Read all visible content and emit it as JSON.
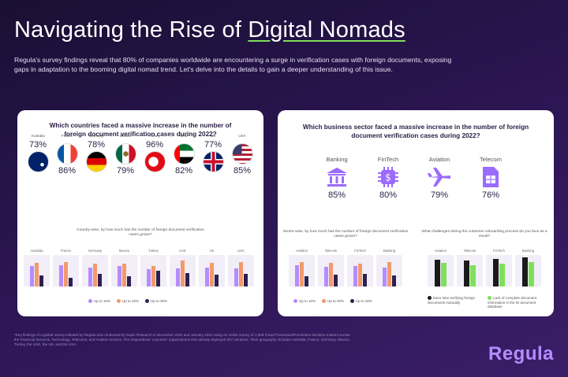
{
  "header": {
    "title_prefix": "Navigating the Rise of ",
    "title_highlight": "Digital Nomads",
    "intro": "Regula's survey findings reveal that 80% of companies worldwide are encountering a surge in verification cases with foreign documents, exposing gaps in adaptation to the booming digital nomad trend. Let's delve into the details to gain a deeper understanding of this issue."
  },
  "left_card": {
    "question": "Which countries faced a massive increase in the number of foreign document verification cases during 2022?",
    "countries": [
      {
        "name": "Australia",
        "pct": "73%",
        "flag": "australia"
      },
      {
        "name": "France",
        "pct": "86%",
        "flag": "france"
      },
      {
        "name": "Germany",
        "pct": "78%",
        "flag": "germany"
      },
      {
        "name": "Mexico",
        "pct": "79%",
        "flag": "mexico"
      },
      {
        "name": "Turkey",
        "pct": "96%",
        "flag": "turkey"
      },
      {
        "name": "UAE",
        "pct": "82%",
        "flag": "uae"
      },
      {
        "name": "UK",
        "pct": "77%",
        "flag": "uk"
      },
      {
        "name": "USA",
        "pct": "85%",
        "flag": "usa"
      }
    ],
    "sub_question": "Country-wise, by how much has the number of foreign document verification cases grown?",
    "chart_labels": [
      "Australia",
      "France",
      "Germany",
      "Mexico",
      "Turkey",
      "UAE",
      "UK",
      "USA"
    ],
    "legend": [
      "Up to 10%",
      "Up to 20%",
      "Up to 30%"
    ]
  },
  "right_card": {
    "question": "Which business sector faced a massive increase in the number of foreign document verification cases during 2022?",
    "sectors": [
      {
        "name": "Banking",
        "pct": "85%",
        "icon": "bank-icon"
      },
      {
        "name": "FinTech",
        "pct": "80%",
        "icon": "fintech-chip-icon"
      },
      {
        "name": "Aviation",
        "pct": "79%",
        "icon": "airplane-icon"
      },
      {
        "name": "Telecom",
        "pct": "76%",
        "icon": "sim-card-icon"
      }
    ],
    "sub_question_left": "Sector-wise, by how much has the number of foreign document verification cases grown?",
    "chart_labels_left": [
      "Aviation",
      "Telecom",
      "FinTech",
      "Banking"
    ],
    "legend_left": [
      "Up to 10%",
      "Up to 20%",
      "Up to 30%"
    ],
    "sub_question_right": "What challenges during the customer onboarding process do you face as a result?",
    "chart_labels_right": [
      "Aviation",
      "Telecom",
      "FinTech",
      "Banking"
    ],
    "legend_right": [
      "More time verifying foreign documents manually",
      "Lack of complete document information in the ID document database"
    ]
  },
  "footnote": "*Key findings of a global survey initiated by Regula and conducted by Sapio Research in December 2022 and January 2023 using an online survey of 1,009 Fraud Prevention/Prevention decision-makers across the Financial Services, Technology, Telecoms, and Aviation sectors. The respondents' countries' organizations that already deployed IDV solutions. Their geography includes Australia, France, Germany, Mexico, Turkey, the UAE, the UK, and the USA.",
  "brand": {
    "logo": "Regula"
  },
  "colors": {
    "accent_green": "#7ee05a",
    "purple": "#b58cff",
    "orange": "#f29a6b",
    "dark": "#2e2050"
  },
  "chart_data": [
    {
      "type": "bar",
      "title": "Country-wise, by how much has the number of foreign document verification cases grown?",
      "categories": [
        "Australia",
        "France",
        "Germany",
        "Mexico",
        "Turkey",
        "UAE",
        "UK",
        "USA"
      ],
      "series": [
        {
          "name": "Up to 10%",
          "values": [
            45,
            48,
            42,
            46,
            38,
            40,
            42,
            40
          ]
        },
        {
          "name": "Up to 20%",
          "values": [
            52,
            55,
            50,
            50,
            45,
            58,
            52,
            55
          ]
        },
        {
          "name": "Up to 30%",
          "values": [
            25,
            20,
            28,
            22,
            35,
            30,
            26,
            28
          ]
        }
      ],
      "ylim": [
        0,
        70
      ]
    },
    {
      "type": "bar",
      "title": "Sector-wise, by how much has the number of foreign document verification cases grown?",
      "categories": [
        "Aviation",
        "Telecom",
        "FinTech",
        "Banking"
      ],
      "series": [
        {
          "name": "Up to 10%",
          "values": [
            48,
            44,
            46,
            42
          ]
        },
        {
          "name": "Up to 20%",
          "values": [
            55,
            52,
            50,
            54
          ]
        },
        {
          "name": "Up to 30%",
          "values": [
            22,
            26,
            28,
            25
          ]
        }
      ],
      "ylim": [
        0,
        70
      ]
    },
    {
      "type": "bar",
      "title": "What challenges during the customer onboarding process do you face as a result?",
      "categories": [
        "Aviation",
        "Telecom",
        "FinTech",
        "Banking"
      ],
      "series": [
        {
          "name": "More time verifying foreign documents manually",
          "values": [
            60,
            58,
            62,
            64
          ]
        },
        {
          "name": "Lack of complete document information in the ID document database",
          "values": [
            52,
            48,
            50,
            54
          ]
        }
      ],
      "ylim": [
        0,
        70
      ]
    }
  ]
}
